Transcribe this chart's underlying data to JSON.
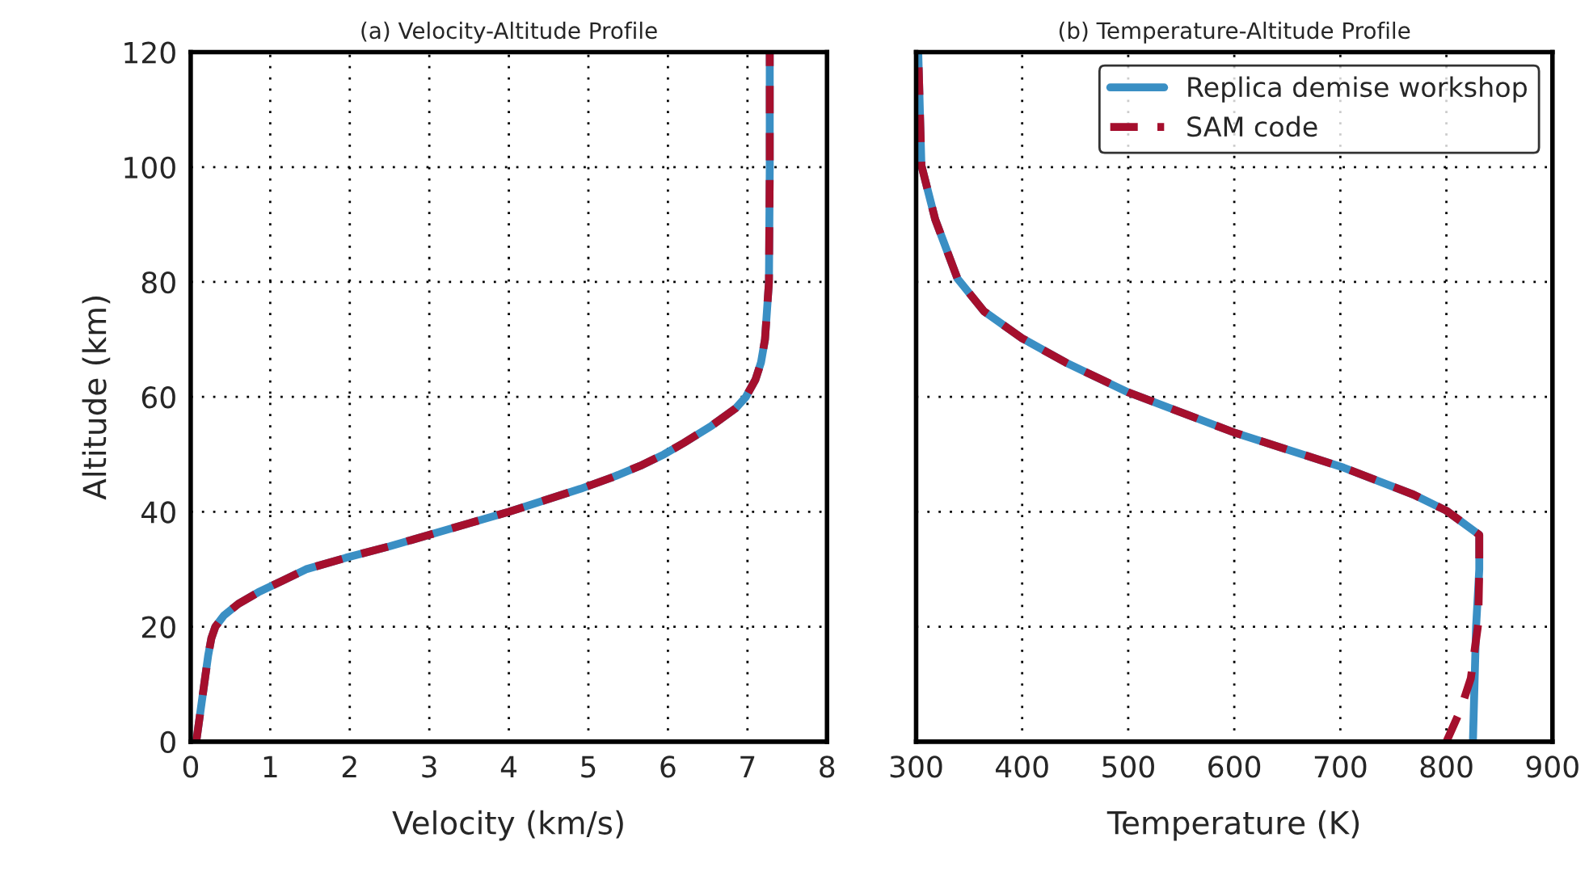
{
  "chart_data": [
    {
      "type": "line",
      "title": "(a) Velocity-Altitude Profile",
      "xlabel": "Velocity (km/s)",
      "ylabel": "Altitude (km)",
      "xlim": [
        0,
        8
      ],
      "xticks": [
        0,
        1,
        2,
        3,
        4,
        5,
        6,
        7,
        8
      ],
      "ylim": [
        0,
        120
      ],
      "yticks": [
        0,
        20,
        40,
        60,
        80,
        100,
        120
      ],
      "grid": true,
      "legend": false,
      "series": [
        {
          "color": "#3a8fc4",
          "line_style": "solid",
          "x": [
            0.07,
            0.12,
            0.17,
            0.22,
            0.26,
            0.31,
            0.42,
            0.6,
            0.85,
            1.15,
            1.45,
            1.95,
            2.5,
            3.0,
            3.5,
            4.0,
            4.45,
            4.9,
            5.3,
            5.65,
            5.95,
            6.2,
            6.55,
            6.85,
            6.98,
            7.1,
            7.17,
            7.22,
            7.27,
            7.28,
            7.28
          ],
          "values": [
            0,
            5,
            10,
            15,
            18,
            20,
            22,
            24,
            26,
            28,
            30,
            32,
            34,
            36,
            38,
            40,
            42,
            44,
            46,
            48,
            50,
            52,
            55,
            58,
            60,
            63,
            66,
            70,
            80,
            100,
            120
          ]
        },
        {
          "color": "#a50f2d",
          "line_style": "dashed",
          "x": [
            0.07,
            0.12,
            0.17,
            0.22,
            0.26,
            0.31,
            0.42,
            0.6,
            0.85,
            1.15,
            1.45,
            1.95,
            2.5,
            3.0,
            3.5,
            4.0,
            4.45,
            4.9,
            5.3,
            5.65,
            5.95,
            6.2,
            6.55,
            6.85,
            6.98,
            7.1,
            7.17,
            7.22,
            7.27,
            7.28,
            7.28
          ],
          "values": [
            0,
            5,
            10,
            15,
            18,
            20,
            22,
            24,
            26,
            28,
            30,
            32,
            34,
            36,
            38,
            40,
            42,
            44,
            46,
            48,
            50,
            52,
            55,
            58,
            60,
            63,
            66,
            70,
            80,
            100,
            120
          ]
        }
      ]
    },
    {
      "type": "line",
      "title": "(b) Temperature-Altitude Profile",
      "xlabel": "Temperature (K)",
      "xlim": [
        300,
        900
      ],
      "xticks": [
        300,
        400,
        500,
        600,
        700,
        800,
        900
      ],
      "ylim": [
        0,
        120
      ],
      "yticks": [
        0,
        20,
        40,
        60,
        80,
        100,
        120
      ],
      "tick_labels": "x",
      "grid": true,
      "legend": "top right",
      "series": [
        {
          "name": "Replica demise workshop",
          "color": "#3a8fc4",
          "line_style": "solid",
          "x": [
            825,
            828,
            831,
            831,
            800,
            769,
            703,
            600,
            500,
            441,
            400,
            364,
            339,
            318,
            305,
            302
          ],
          "values": [
            0,
            20,
            30,
            36,
            40.2,
            43,
            47.7,
            53.8,
            60.8,
            66,
            70.2,
            74.9,
            80.6,
            90.9,
            100.3,
            120
          ]
        },
        {
          "name": "SAM code",
          "color": "#a50f2d",
          "line_style": "dashed",
          "x": [
            800,
            813,
            823,
            830,
            831,
            831,
            800,
            769,
            703,
            600,
            500,
            441,
            400,
            364,
            339,
            318,
            305,
            302
          ],
          "values": [
            0,
            5.4,
            11,
            20.5,
            30,
            36,
            40.2,
            43,
            47.7,
            53.8,
            60.8,
            66,
            70.2,
            74.9,
            80.6,
            90.9,
            100.3,
            120
          ]
        }
      ]
    }
  ]
}
